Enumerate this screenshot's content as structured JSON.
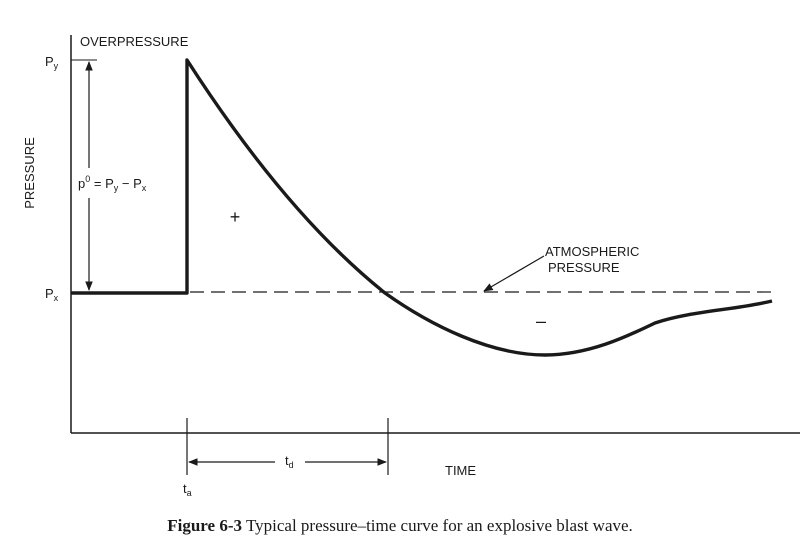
{
  "diagram": {
    "title": "Typical pressure–time curve for an explosive blast wave",
    "y_axis_label": "PRESSURE",
    "y_axis_top_label": "OVERPRESSURE",
    "x_axis_label": "TIME",
    "peak_pressure": {
      "base": "P",
      "sub": "y"
    },
    "ambient_pressure": {
      "base": "P",
      "sub": "x"
    },
    "overpressure_formula": {
      "lhs": "p",
      "sup": "0",
      "eq": " = P",
      "sub1": "y",
      "minus": " − P",
      "sub2": "x"
    },
    "positive_phase_sign": "+",
    "negative_phase_sign": "–",
    "atmospheric_label": {
      "line1": "ATMOSPHERIC",
      "line2": "PRESSURE"
    },
    "arrival_time": {
      "base": "t",
      "sub": "a"
    },
    "duration": {
      "base": "t",
      "sub": "d"
    }
  },
  "caption": {
    "label": "Figure 6-3",
    "text": "Typical pressure–time curve for an explosive blast wave."
  }
}
